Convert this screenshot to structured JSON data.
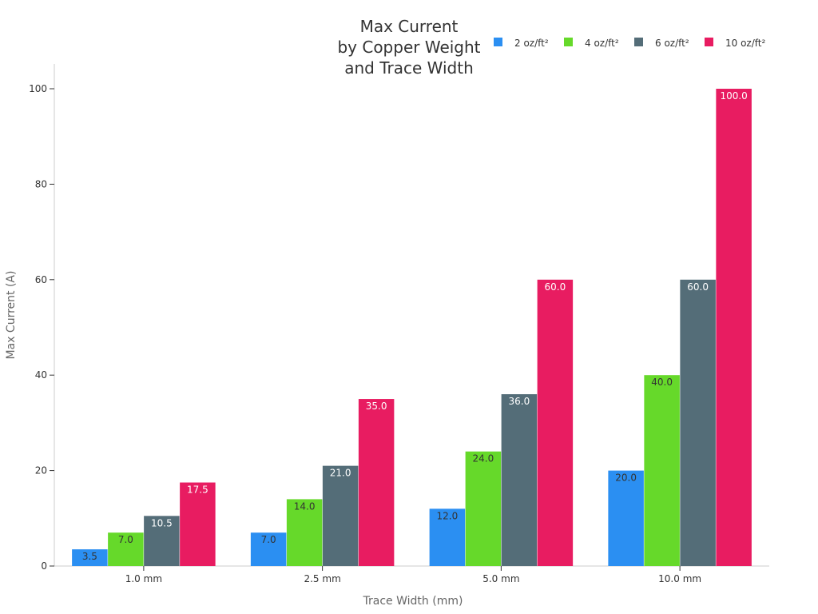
{
  "chart_data": {
    "type": "bar",
    "title": [
      "Max Current",
      "by Copper Weight",
      "and Trace Width"
    ],
    "xlabel": "Trace Width (mm)",
    "ylabel": "Max Current (A)",
    "categories": [
      "1.0 mm",
      "2.5 mm",
      "5.0 mm",
      "10.0 mm"
    ],
    "ylim": [
      0,
      105
    ],
    "yticks": [
      0,
      20,
      40,
      60,
      80,
      100
    ],
    "grid": false,
    "legend_position": "top-right",
    "series": [
      {
        "name": "2 oz/ft²",
        "color": "#2b8ff2",
        "label_color": "#333333",
        "values": [
          3.5,
          7.0,
          12.0,
          20.0
        ]
      },
      {
        "name": "4 oz/ft²",
        "color": "#66d92a",
        "label_color": "#333333",
        "values": [
          7.0,
          14.0,
          24.0,
          40.0
        ]
      },
      {
        "name": "6 oz/ft²",
        "color": "#546d78",
        "label_color": "#ffffff",
        "values": [
          10.5,
          21.0,
          36.0,
          60.0
        ]
      },
      {
        "name": "10 oz/ft²",
        "color": "#e81c61",
        "label_color": "#ffffff",
        "values": [
          17.5,
          35.0,
          60.0,
          100.0
        ]
      }
    ],
    "value_labels": [
      [
        "3.5",
        "7.0",
        "12.0",
        "20.0"
      ],
      [
        "7.0",
        "14.0",
        "24.0",
        "40.0"
      ],
      [
        "10.5",
        "21.0",
        "36.0",
        "60.0"
      ],
      [
        "17.5",
        "35.0",
        "60.0",
        "100.0"
      ]
    ]
  }
}
